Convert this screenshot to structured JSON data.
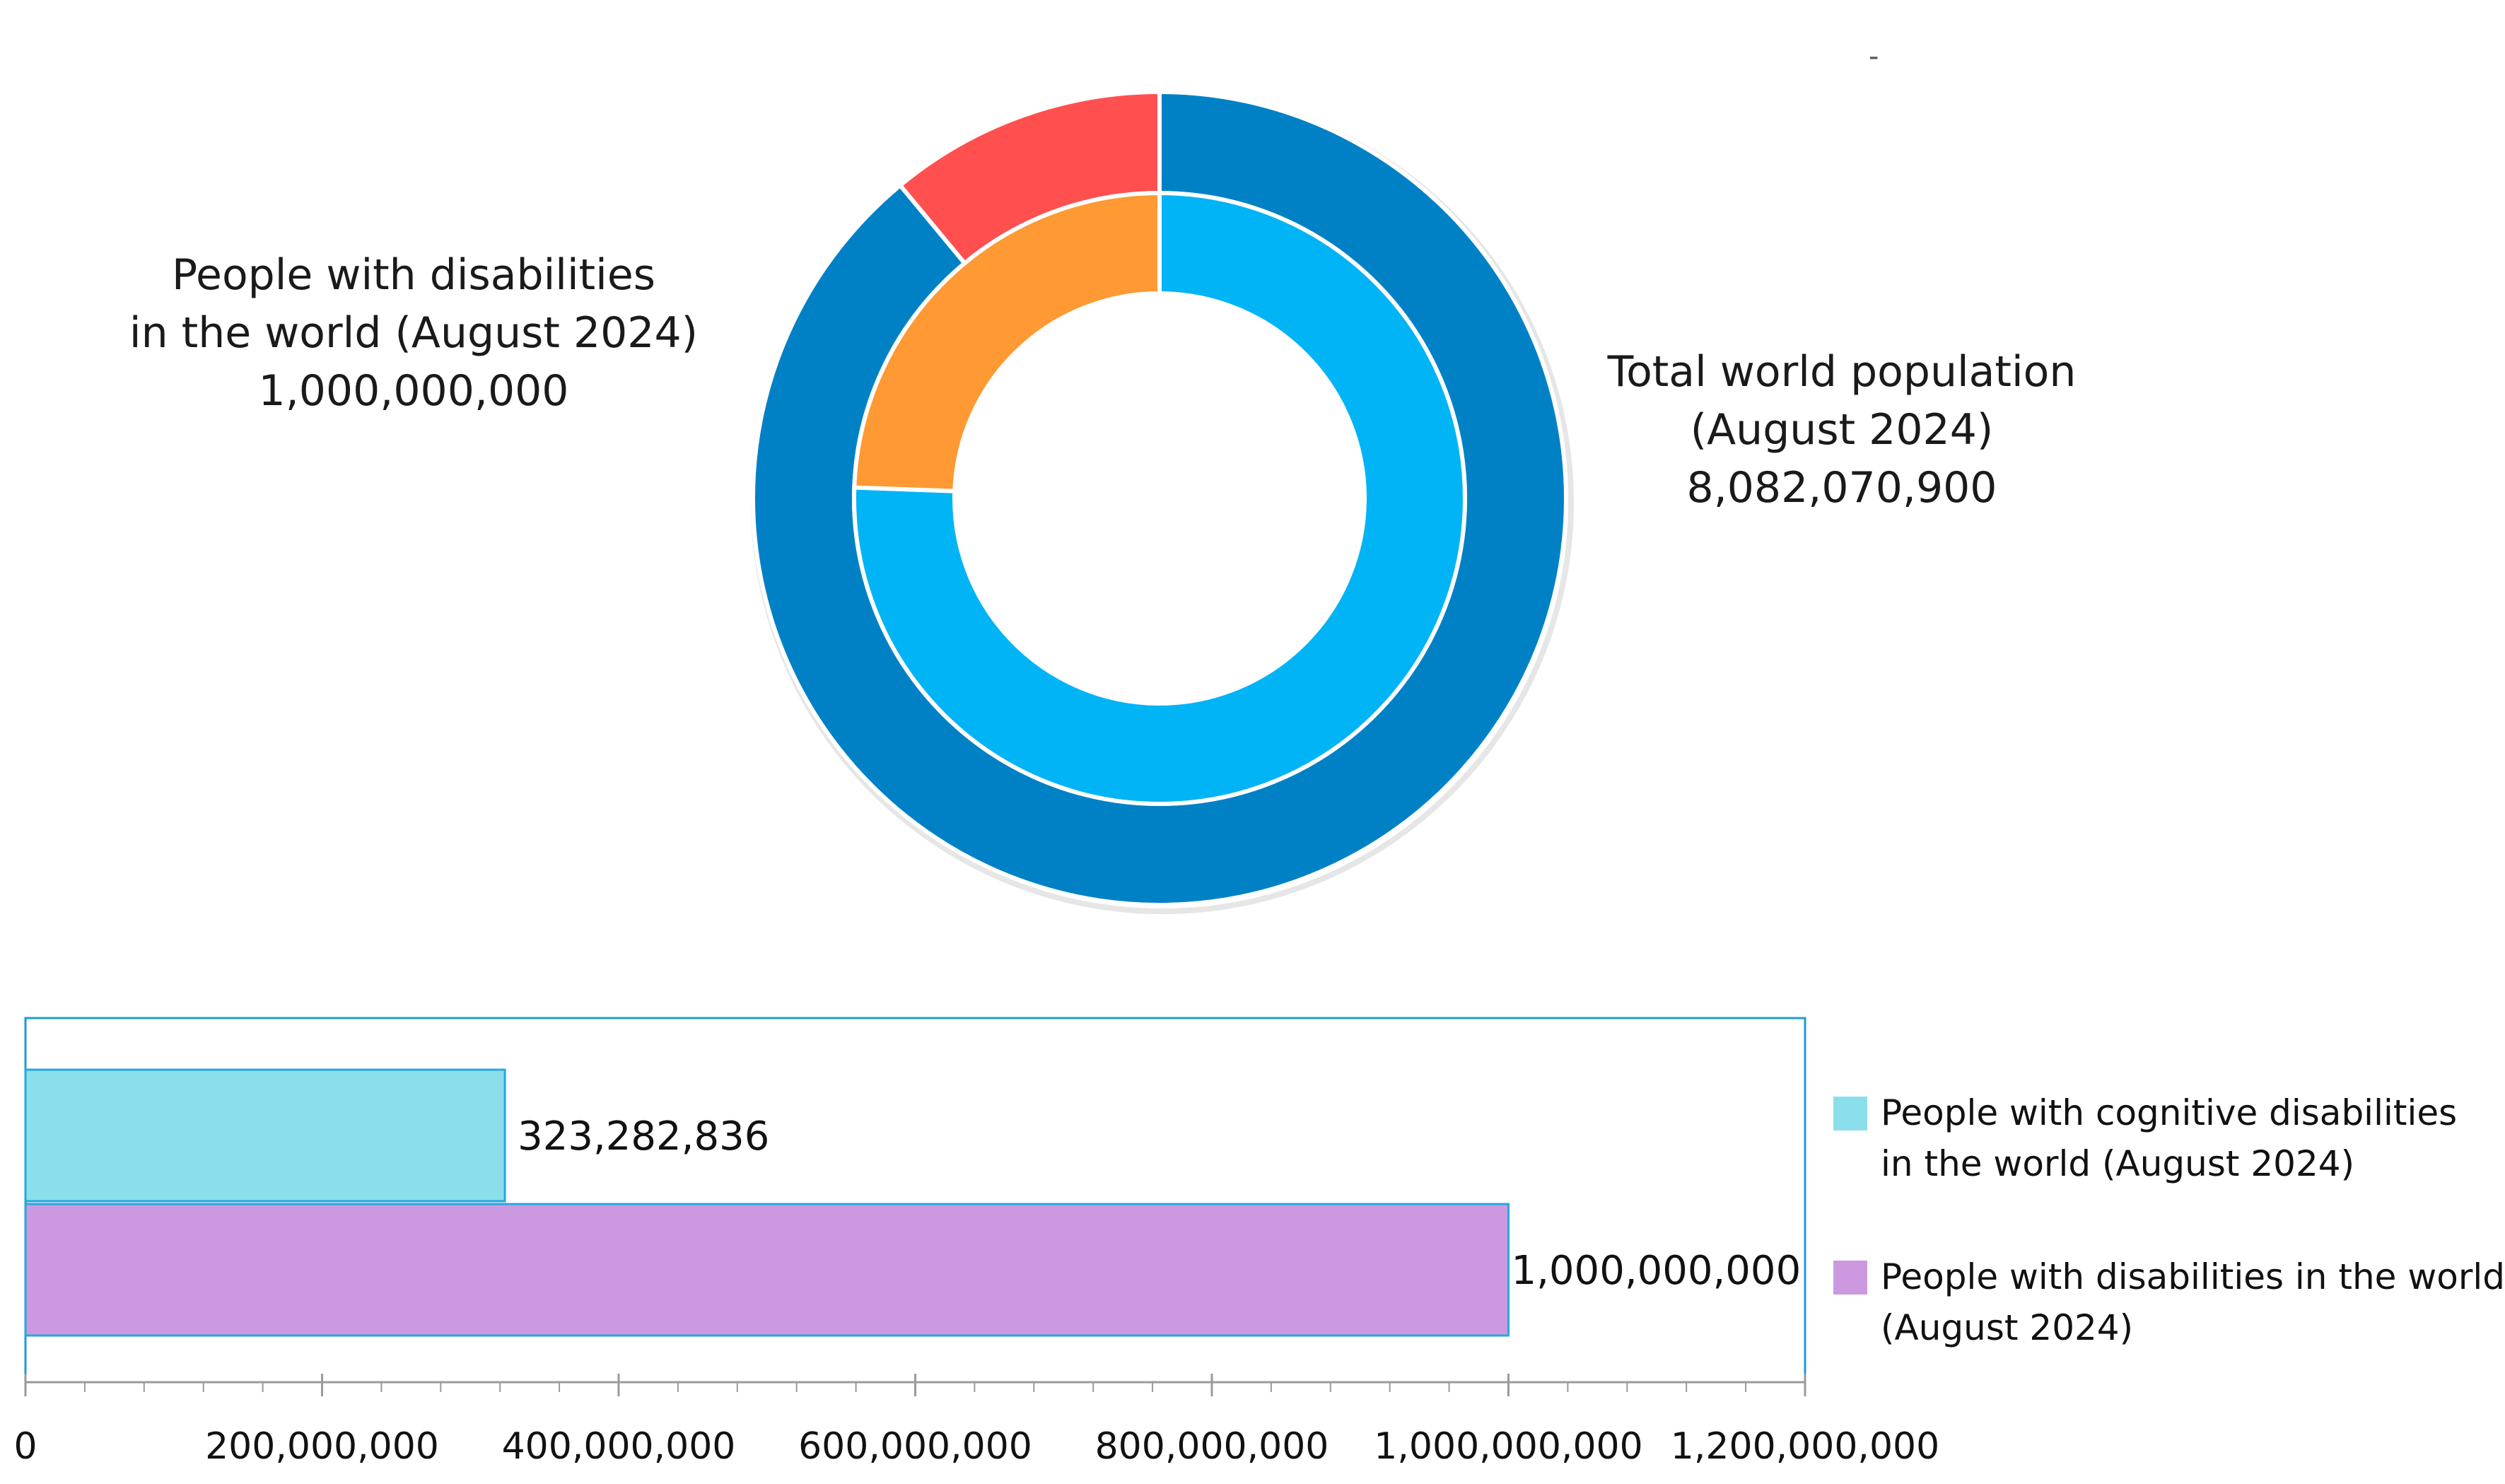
{
  "chart_data": [
    {
      "type": "donut",
      "outer_ring": {
        "name": "Total world population (August 2024)",
        "slices": [
          {
            "label": "Total world population (August 2024)",
            "value": 8082070900,
            "color": "#0081C6"
          },
          {
            "label": "People with disabilities in the world (August 2024)",
            "value": 1000000000,
            "color": "#FF4F4F"
          }
        ]
      },
      "inner_ring": {
        "name": "People with disabilities in the world (August 2024)",
        "slices": [
          {
            "label": "People with disabilities in the world (August 2024)",
            "value": 1000000000,
            "color": "#00B4F5"
          },
          {
            "label": "People with cognitive disabilities in the world (August 2024)",
            "value": 323282836,
            "color": "#FF9933"
          }
        ]
      },
      "labels": {
        "left": {
          "lines": [
            "People with disabilities",
            "in the world (August 2024)",
            "1,000,000,000"
          ]
        },
        "right": {
          "lines": [
            "Total world population",
            "(August 2024)",
            "8,082,070,900"
          ]
        }
      },
      "stray_mark": "-"
    },
    {
      "type": "bar",
      "orientation": "horizontal",
      "categories": [
        "People with cognitive disabilities in the world (August 2024)",
        "People with disabilities in the world (August 2024)"
      ],
      "values": [
        323282836,
        1000000000
      ],
      "data_labels": [
        "323,282,836",
        "1,000,000,000"
      ],
      "colors": [
        "#8BDFEA",
        "#CC99E0"
      ],
      "xlim": [
        0,
        1200000000
      ],
      "x_ticks": [
        0,
        200000000,
        400000000,
        600000000,
        800000000,
        1000000000,
        1200000000
      ],
      "x_tick_labels": [
        "0",
        "200,000,000",
        "400,000,000",
        "600,000,000",
        "800,000,000",
        "1,000,000,000",
        "1,200,000,000"
      ],
      "grid": false,
      "legend_position": "right",
      "legend": [
        {
          "lines": [
            "People with cognitive disabilities",
            "in the world (August 2024)"
          ],
          "color": "#8BDFEA"
        },
        {
          "lines": [
            "People with disabilities in the world",
            "(August 2024)"
          ],
          "color": "#CC99E0"
        }
      ],
      "frame_color": "#1E9BD7"
    }
  ]
}
